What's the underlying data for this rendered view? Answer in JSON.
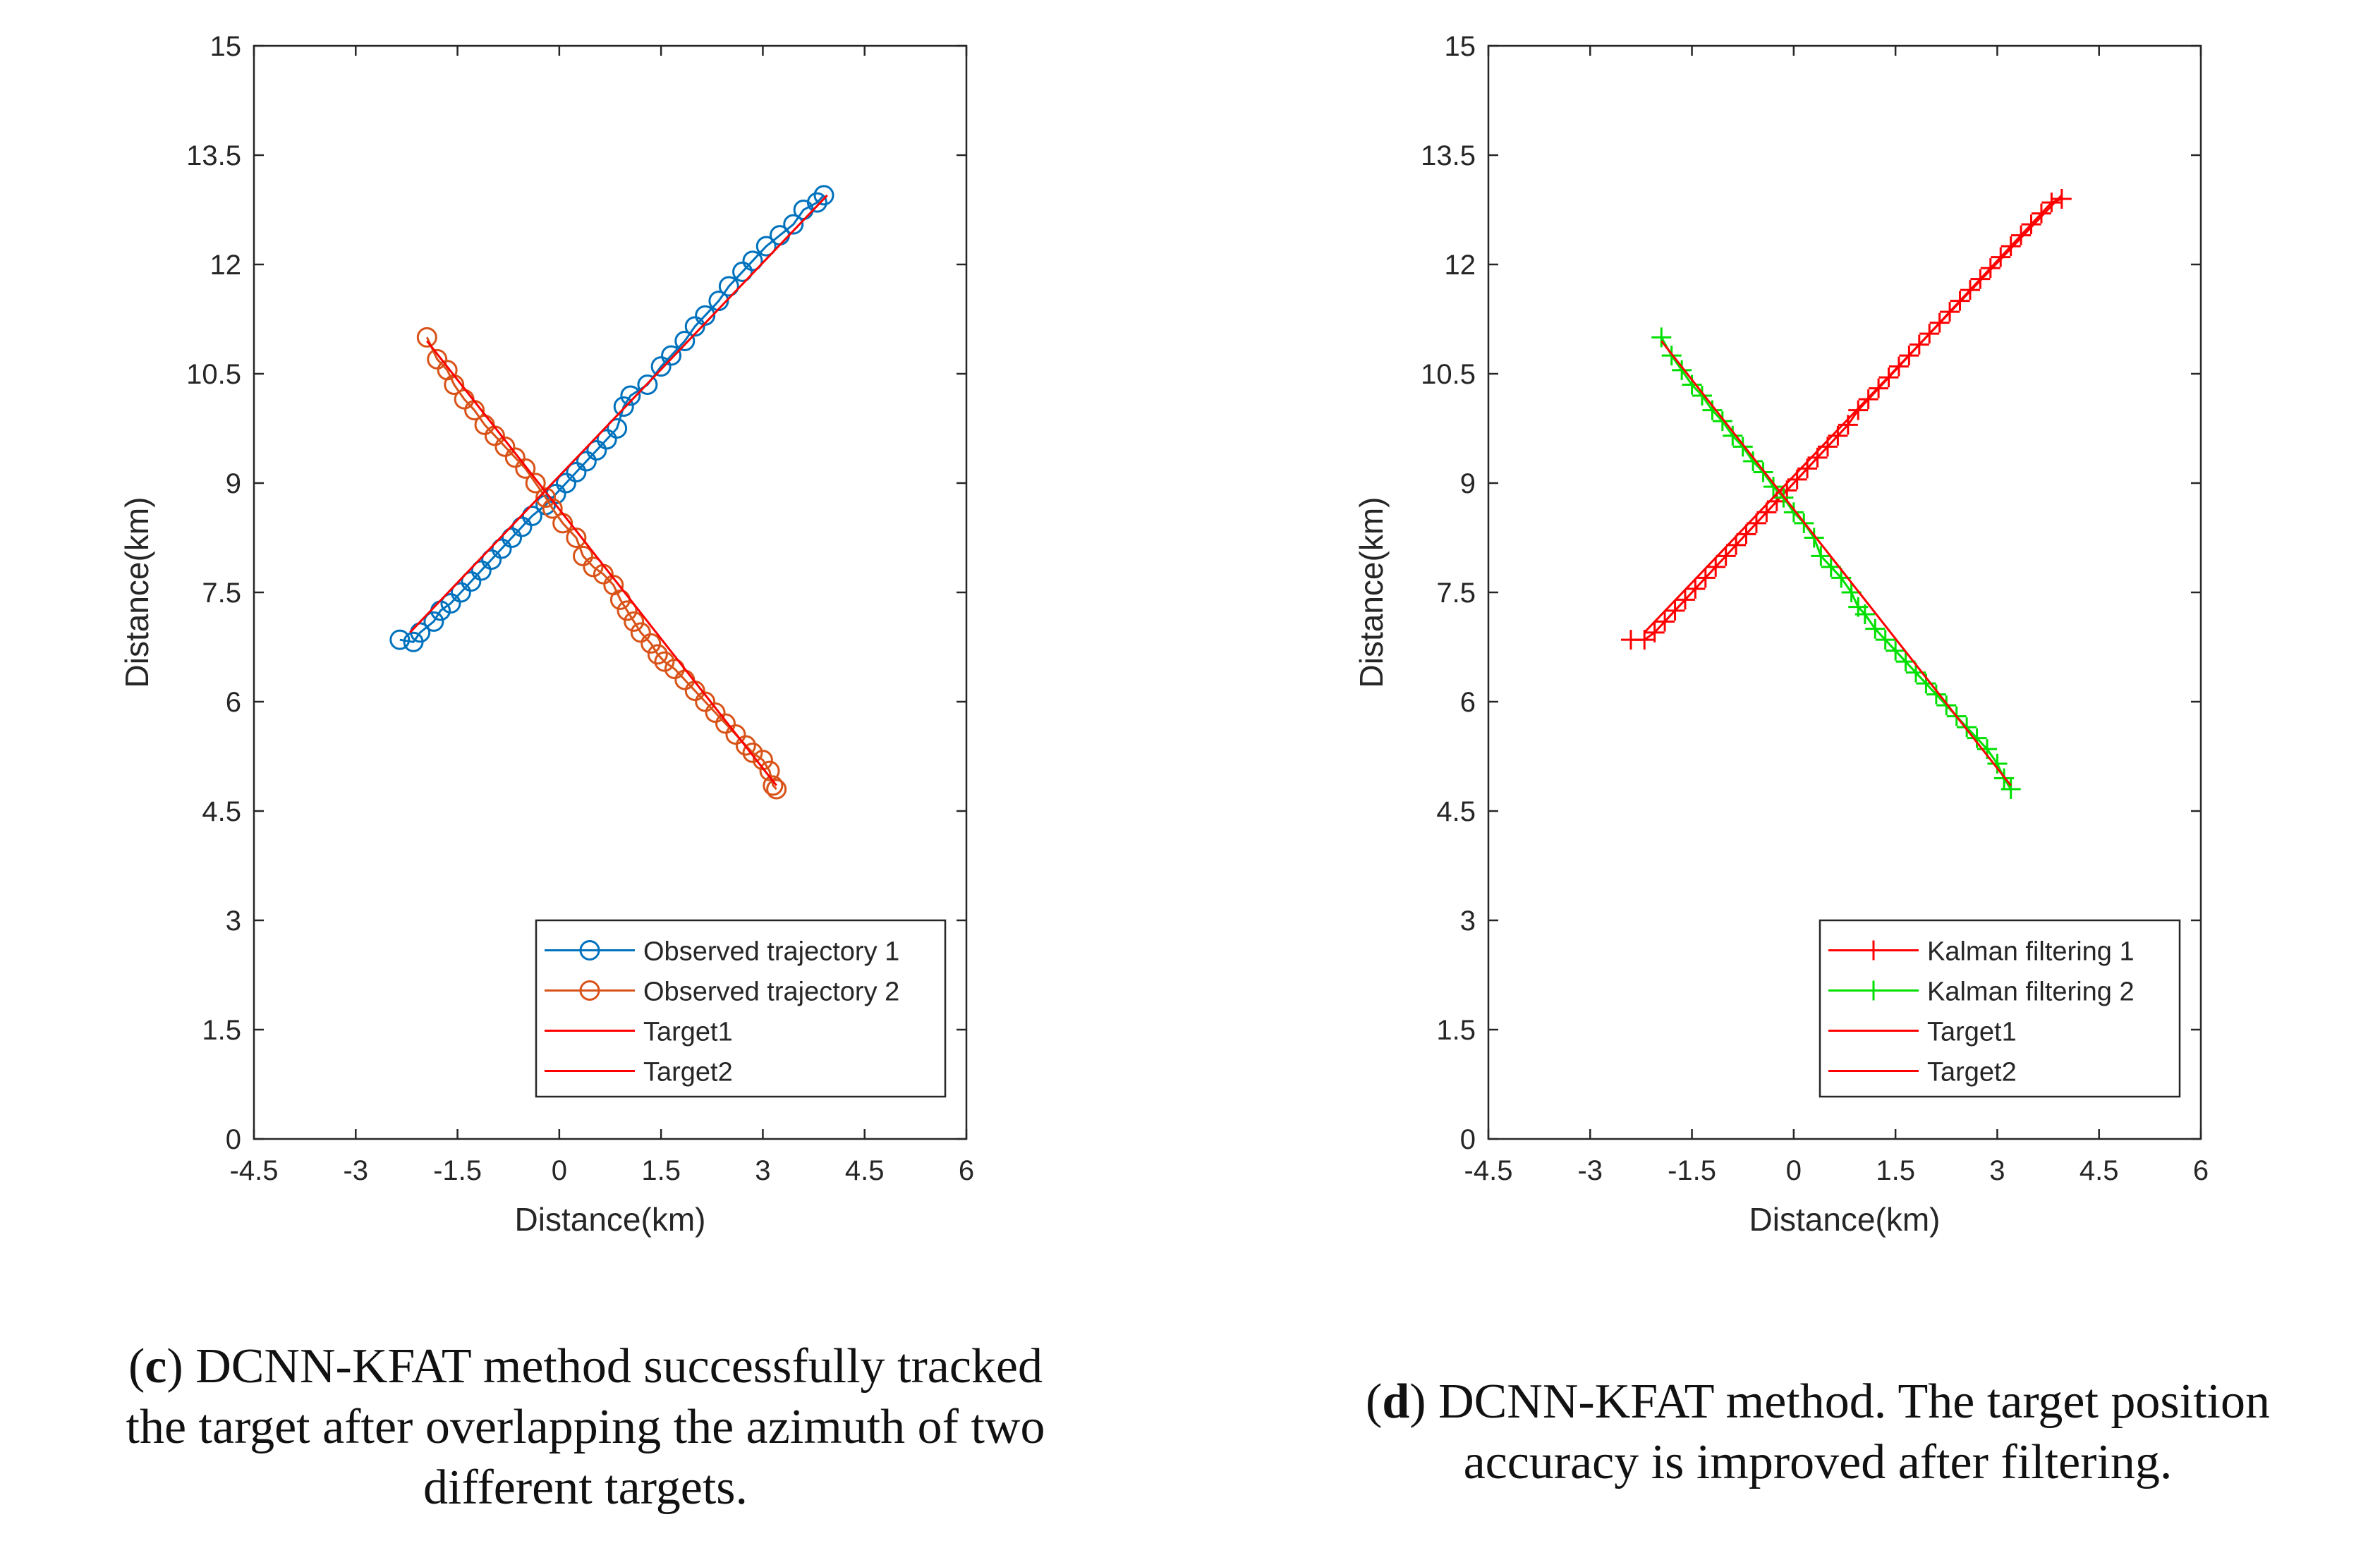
{
  "charts": [
    {
      "id": "c",
      "chart_data": {
        "type": "line",
        "title": "",
        "xlabel": "Distance(km)",
        "ylabel": "Distance(km)",
        "xlim": [
          -4.5,
          6
        ],
        "ylim": [
          0,
          15
        ],
        "xticks": [
          -4.5,
          -3,
          -1.5,
          0,
          1.5,
          3,
          4.5,
          6
        ],
        "xtick_labels": [
          "-4.5",
          "-3",
          "-1.5",
          "0",
          "1.5",
          "3",
          "4.5",
          "6"
        ],
        "yticks": [
          0,
          1.5,
          3,
          4.5,
          6,
          7.5,
          9,
          10.5,
          12,
          13.5,
          15
        ],
        "ytick_labels": [
          "0",
          "1.5",
          "3",
          "4.5",
          "6",
          "7.5",
          "9",
          "10.5",
          "12",
          "13.5",
          "15"
        ],
        "legend_position": "bottom-right",
        "series": [
          {
            "name": "Observed trajectory 1",
            "color": "#0072BD",
            "marker": "circle",
            "line": true,
            "points": [
              [
                -2.35,
                6.85
              ],
              [
                -2.15,
                6.82
              ],
              [
                -2.05,
                6.95
              ],
              [
                -1.85,
                7.1
              ],
              [
                -1.75,
                7.25
              ],
              [
                -1.6,
                7.35
              ],
              [
                -1.45,
                7.5
              ],
              [
                -1.3,
                7.65
              ],
              [
                -1.15,
                7.8
              ],
              [
                -1.0,
                7.95
              ],
              [
                -0.85,
                8.1
              ],
              [
                -0.7,
                8.25
              ],
              [
                -0.55,
                8.4
              ],
              [
                -0.4,
                8.55
              ],
              [
                -0.2,
                8.7
              ],
              [
                -0.05,
                8.85
              ],
              [
                0.1,
                9.0
              ],
              [
                0.25,
                9.15
              ],
              [
                0.4,
                9.3
              ],
              [
                0.55,
                9.45
              ],
              [
                0.7,
                9.6
              ],
              [
                0.85,
                9.75
              ],
              [
                0.95,
                10.05
              ],
              [
                1.05,
                10.2
              ],
              [
                1.3,
                10.35
              ],
              [
                1.5,
                10.6
              ],
              [
                1.65,
                10.75
              ],
              [
                1.85,
                10.95
              ],
              [
                2.0,
                11.15
              ],
              [
                2.15,
                11.3
              ],
              [
                2.35,
                11.5
              ],
              [
                2.5,
                11.7
              ],
              [
                2.7,
                11.9
              ],
              [
                2.85,
                12.05
              ],
              [
                3.05,
                12.25
              ],
              [
                3.25,
                12.4
              ],
              [
                3.45,
                12.55
              ],
              [
                3.6,
                12.75
              ],
              [
                3.8,
                12.85
              ],
              [
                3.9,
                12.95
              ]
            ]
          },
          {
            "name": "Observed trajectory 2",
            "color": "#D95319",
            "marker": "circle",
            "line": true,
            "points": [
              [
                -1.95,
                11.0
              ],
              [
                -1.8,
                10.7
              ],
              [
                -1.65,
                10.55
              ],
              [
                -1.55,
                10.35
              ],
              [
                -1.4,
                10.15
              ],
              [
                -1.25,
                10.0
              ],
              [
                -1.1,
                9.8
              ],
              [
                -0.95,
                9.65
              ],
              [
                -0.8,
                9.5
              ],
              [
                -0.65,
                9.35
              ],
              [
                -0.5,
                9.2
              ],
              [
                -0.35,
                9.0
              ],
              [
                -0.2,
                8.8
              ],
              [
                -0.1,
                8.65
              ],
              [
                0.05,
                8.45
              ],
              [
                0.25,
                8.25
              ],
              [
                0.35,
                8.0
              ],
              [
                0.5,
                7.85
              ],
              [
                0.65,
                7.75
              ],
              [
                0.8,
                7.6
              ],
              [
                0.9,
                7.4
              ],
              [
                1.0,
                7.25
              ],
              [
                1.1,
                7.1
              ],
              [
                1.2,
                6.95
              ],
              [
                1.35,
                6.8
              ],
              [
                1.45,
                6.65
              ],
              [
                1.55,
                6.55
              ],
              [
                1.7,
                6.45
              ],
              [
                1.85,
                6.3
              ],
              [
                2.0,
                6.15
              ],
              [
                2.15,
                6.0
              ],
              [
                2.3,
                5.85
              ],
              [
                2.45,
                5.7
              ],
              [
                2.6,
                5.55
              ],
              [
                2.75,
                5.4
              ],
              [
                2.85,
                5.3
              ],
              [
                3.0,
                5.2
              ],
              [
                3.1,
                5.05
              ],
              [
                3.15,
                4.85
              ],
              [
                3.2,
                4.8
              ]
            ]
          },
          {
            "name": "Target1",
            "color": "#FF0000",
            "marker": "none",
            "line": true,
            "points": [
              [
                -2.2,
                6.95
              ],
              [
                3.95,
                12.95
              ]
            ]
          },
          {
            "name": "Target2",
            "color": "#FF0000",
            "marker": "none",
            "line": true,
            "points": [
              [
                -1.95,
                10.95
              ],
              [
                3.2,
                4.85
              ]
            ]
          }
        ]
      }
    },
    {
      "id": "d",
      "chart_data": {
        "type": "line",
        "title": "",
        "xlabel": "Distance(km)",
        "ylabel": "Distance(km)",
        "xlim": [
          -4.5,
          6
        ],
        "ylim": [
          0,
          15
        ],
        "xticks": [
          -4.5,
          -3,
          -1.5,
          0,
          1.5,
          3,
          4.5,
          6
        ],
        "xtick_labels": [
          "-4.5",
          "-3",
          "-1.5",
          "0",
          "1.5",
          "3",
          "4.5",
          "6"
        ],
        "yticks": [
          0,
          1.5,
          3,
          4.5,
          6,
          7.5,
          9,
          10.5,
          12,
          13.5,
          15
        ],
        "ytick_labels": [
          "0",
          "1.5",
          "3",
          "4.5",
          "6",
          "7.5",
          "9",
          "10.5",
          "12",
          "13.5",
          "15"
        ],
        "legend_position": "bottom-right",
        "series": [
          {
            "name": "Kalman filtering 1",
            "color": "#FF0000",
            "marker": "plus",
            "line": true,
            "points": [
              [
                -2.4,
                6.85
              ],
              [
                -2.2,
                6.85
              ],
              [
                -2.05,
                6.95
              ],
              [
                -1.9,
                7.1
              ],
              [
                -1.75,
                7.25
              ],
              [
                -1.6,
                7.4
              ],
              [
                -1.45,
                7.55
              ],
              [
                -1.3,
                7.7
              ],
              [
                -1.15,
                7.85
              ],
              [
                -1.0,
                8.0
              ],
              [
                -0.85,
                8.15
              ],
              [
                -0.7,
                8.3
              ],
              [
                -0.55,
                8.45
              ],
              [
                -0.4,
                8.6
              ],
              [
                -0.25,
                8.75
              ],
              [
                -0.1,
                8.9
              ],
              [
                0.05,
                9.05
              ],
              [
                0.2,
                9.2
              ],
              [
                0.35,
                9.35
              ],
              [
                0.5,
                9.5
              ],
              [
                0.65,
                9.65
              ],
              [
                0.8,
                9.8
              ],
              [
                0.95,
                10.0
              ],
              [
                1.1,
                10.15
              ],
              [
                1.25,
                10.3
              ],
              [
                1.4,
                10.45
              ],
              [
                1.55,
                10.6
              ],
              [
                1.7,
                10.75
              ],
              [
                1.85,
                10.9
              ],
              [
                2.0,
                11.05
              ],
              [
                2.15,
                11.2
              ],
              [
                2.3,
                11.35
              ],
              [
                2.45,
                11.5
              ],
              [
                2.6,
                11.65
              ],
              [
                2.75,
                11.8
              ],
              [
                2.9,
                11.95
              ],
              [
                3.05,
                12.1
              ],
              [
                3.2,
                12.25
              ],
              [
                3.35,
                12.4
              ],
              [
                3.5,
                12.55
              ],
              [
                3.65,
                12.7
              ],
              [
                3.8,
                12.85
              ],
              [
                3.95,
                12.9
              ]
            ]
          },
          {
            "name": "Kalman filtering 2",
            "color": "#00E000",
            "marker": "plus",
            "line": true,
            "points": [
              [
                -1.95,
                11.0
              ],
              [
                -1.8,
                10.75
              ],
              [
                -1.65,
                10.55
              ],
              [
                -1.5,
                10.35
              ],
              [
                -1.35,
                10.2
              ],
              [
                -1.2,
                10.0
              ],
              [
                -1.05,
                9.85
              ],
              [
                -0.9,
                9.65
              ],
              [
                -0.75,
                9.5
              ],
              [
                -0.6,
                9.3
              ],
              [
                -0.45,
                9.15
              ],
              [
                -0.3,
                8.95
              ],
              [
                -0.15,
                8.8
              ],
              [
                0.0,
                8.6
              ],
              [
                0.15,
                8.45
              ],
              [
                0.3,
                8.25
              ],
              [
                0.4,
                8.0
              ],
              [
                0.55,
                7.85
              ],
              [
                0.7,
                7.7
              ],
              [
                0.85,
                7.5
              ],
              [
                0.95,
                7.3
              ],
              [
                1.05,
                7.2
              ],
              [
                1.2,
                7.0
              ],
              [
                1.35,
                6.85
              ],
              [
                1.5,
                6.7
              ],
              [
                1.65,
                6.55
              ],
              [
                1.8,
                6.4
              ],
              [
                1.95,
                6.25
              ],
              [
                2.1,
                6.1
              ],
              [
                2.25,
                5.95
              ],
              [
                2.4,
                5.8
              ],
              [
                2.55,
                5.65
              ],
              [
                2.7,
                5.5
              ],
              [
                2.85,
                5.35
              ],
              [
                3.0,
                5.15
              ],
              [
                3.1,
                4.95
              ],
              [
                3.2,
                4.8
              ]
            ]
          },
          {
            "name": "Target1",
            "color": "#FF0000",
            "marker": "none",
            "line": true,
            "points": [
              [
                -2.2,
                6.95
              ],
              [
                3.95,
                12.95
              ]
            ]
          },
          {
            "name": "Target2",
            "color": "#FF0000",
            "marker": "none",
            "line": true,
            "points": [
              [
                -1.95,
                10.95
              ],
              [
                3.2,
                4.85
              ]
            ]
          }
        ]
      }
    }
  ],
  "captions": {
    "c": {
      "letter": "c",
      "text_line1": " DCNN-KFAT method successfully tracked",
      "text_line2": "the target after overlapping the azimuth of two",
      "text_line3": "different targets."
    },
    "d": {
      "letter": "d",
      "text_line1": " DCNN-KFAT method. The target position",
      "text_line2": "accuracy is improved after filtering."
    }
  }
}
